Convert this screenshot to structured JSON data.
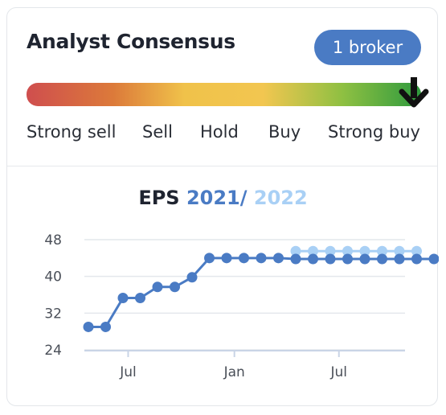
{
  "header": {
    "title": "Analyst Consensus",
    "broker_badge": "1 broker"
  },
  "gauge": {
    "consensus": "Strong buy",
    "labels": [
      "Strong sell",
      "Sell",
      "Hold",
      "Buy",
      "Strong buy"
    ],
    "colors": [
      "#cf4e4e",
      "#dc7a3a",
      "#f0c24a",
      "#8fc042",
      "#2e9a3e"
    ],
    "marker_icon": "arrow-down-icon"
  },
  "eps_title": {
    "prefix": "EPS",
    "year1": "2021",
    "sep": "/",
    "year2": "2022"
  },
  "chart_data": {
    "type": "line",
    "title": "EPS 2021 / 2022",
    "y_ticks": [
      "48",
      "40",
      "32",
      "24"
    ],
    "ylim": [
      24,
      48
    ],
    "x_ticks": [
      {
        "label": "Jul",
        "i": 2.3
      },
      {
        "label": "Jan",
        "i": 8.45
      },
      {
        "label": "Jul",
        "i": 14.5
      }
    ],
    "series": [
      {
        "name": "2021",
        "color": "#4a7bc4",
        "values": [
          29.0,
          29.0,
          35.3,
          35.3,
          37.7,
          37.7,
          39.8,
          44.0,
          44.0,
          44.0,
          44.0,
          44.0,
          43.8,
          43.8,
          43.8,
          43.8,
          43.8,
          43.8,
          43.8,
          43.8,
          43.8
        ],
        "start_index": 0
      },
      {
        "name": "2022",
        "color": "#a9d0f5",
        "values": [
          45.5,
          45.5,
          45.5,
          45.5,
          45.5,
          45.5,
          45.5,
          45.5
        ],
        "start_index": 12
      }
    ],
    "grid": true
  }
}
